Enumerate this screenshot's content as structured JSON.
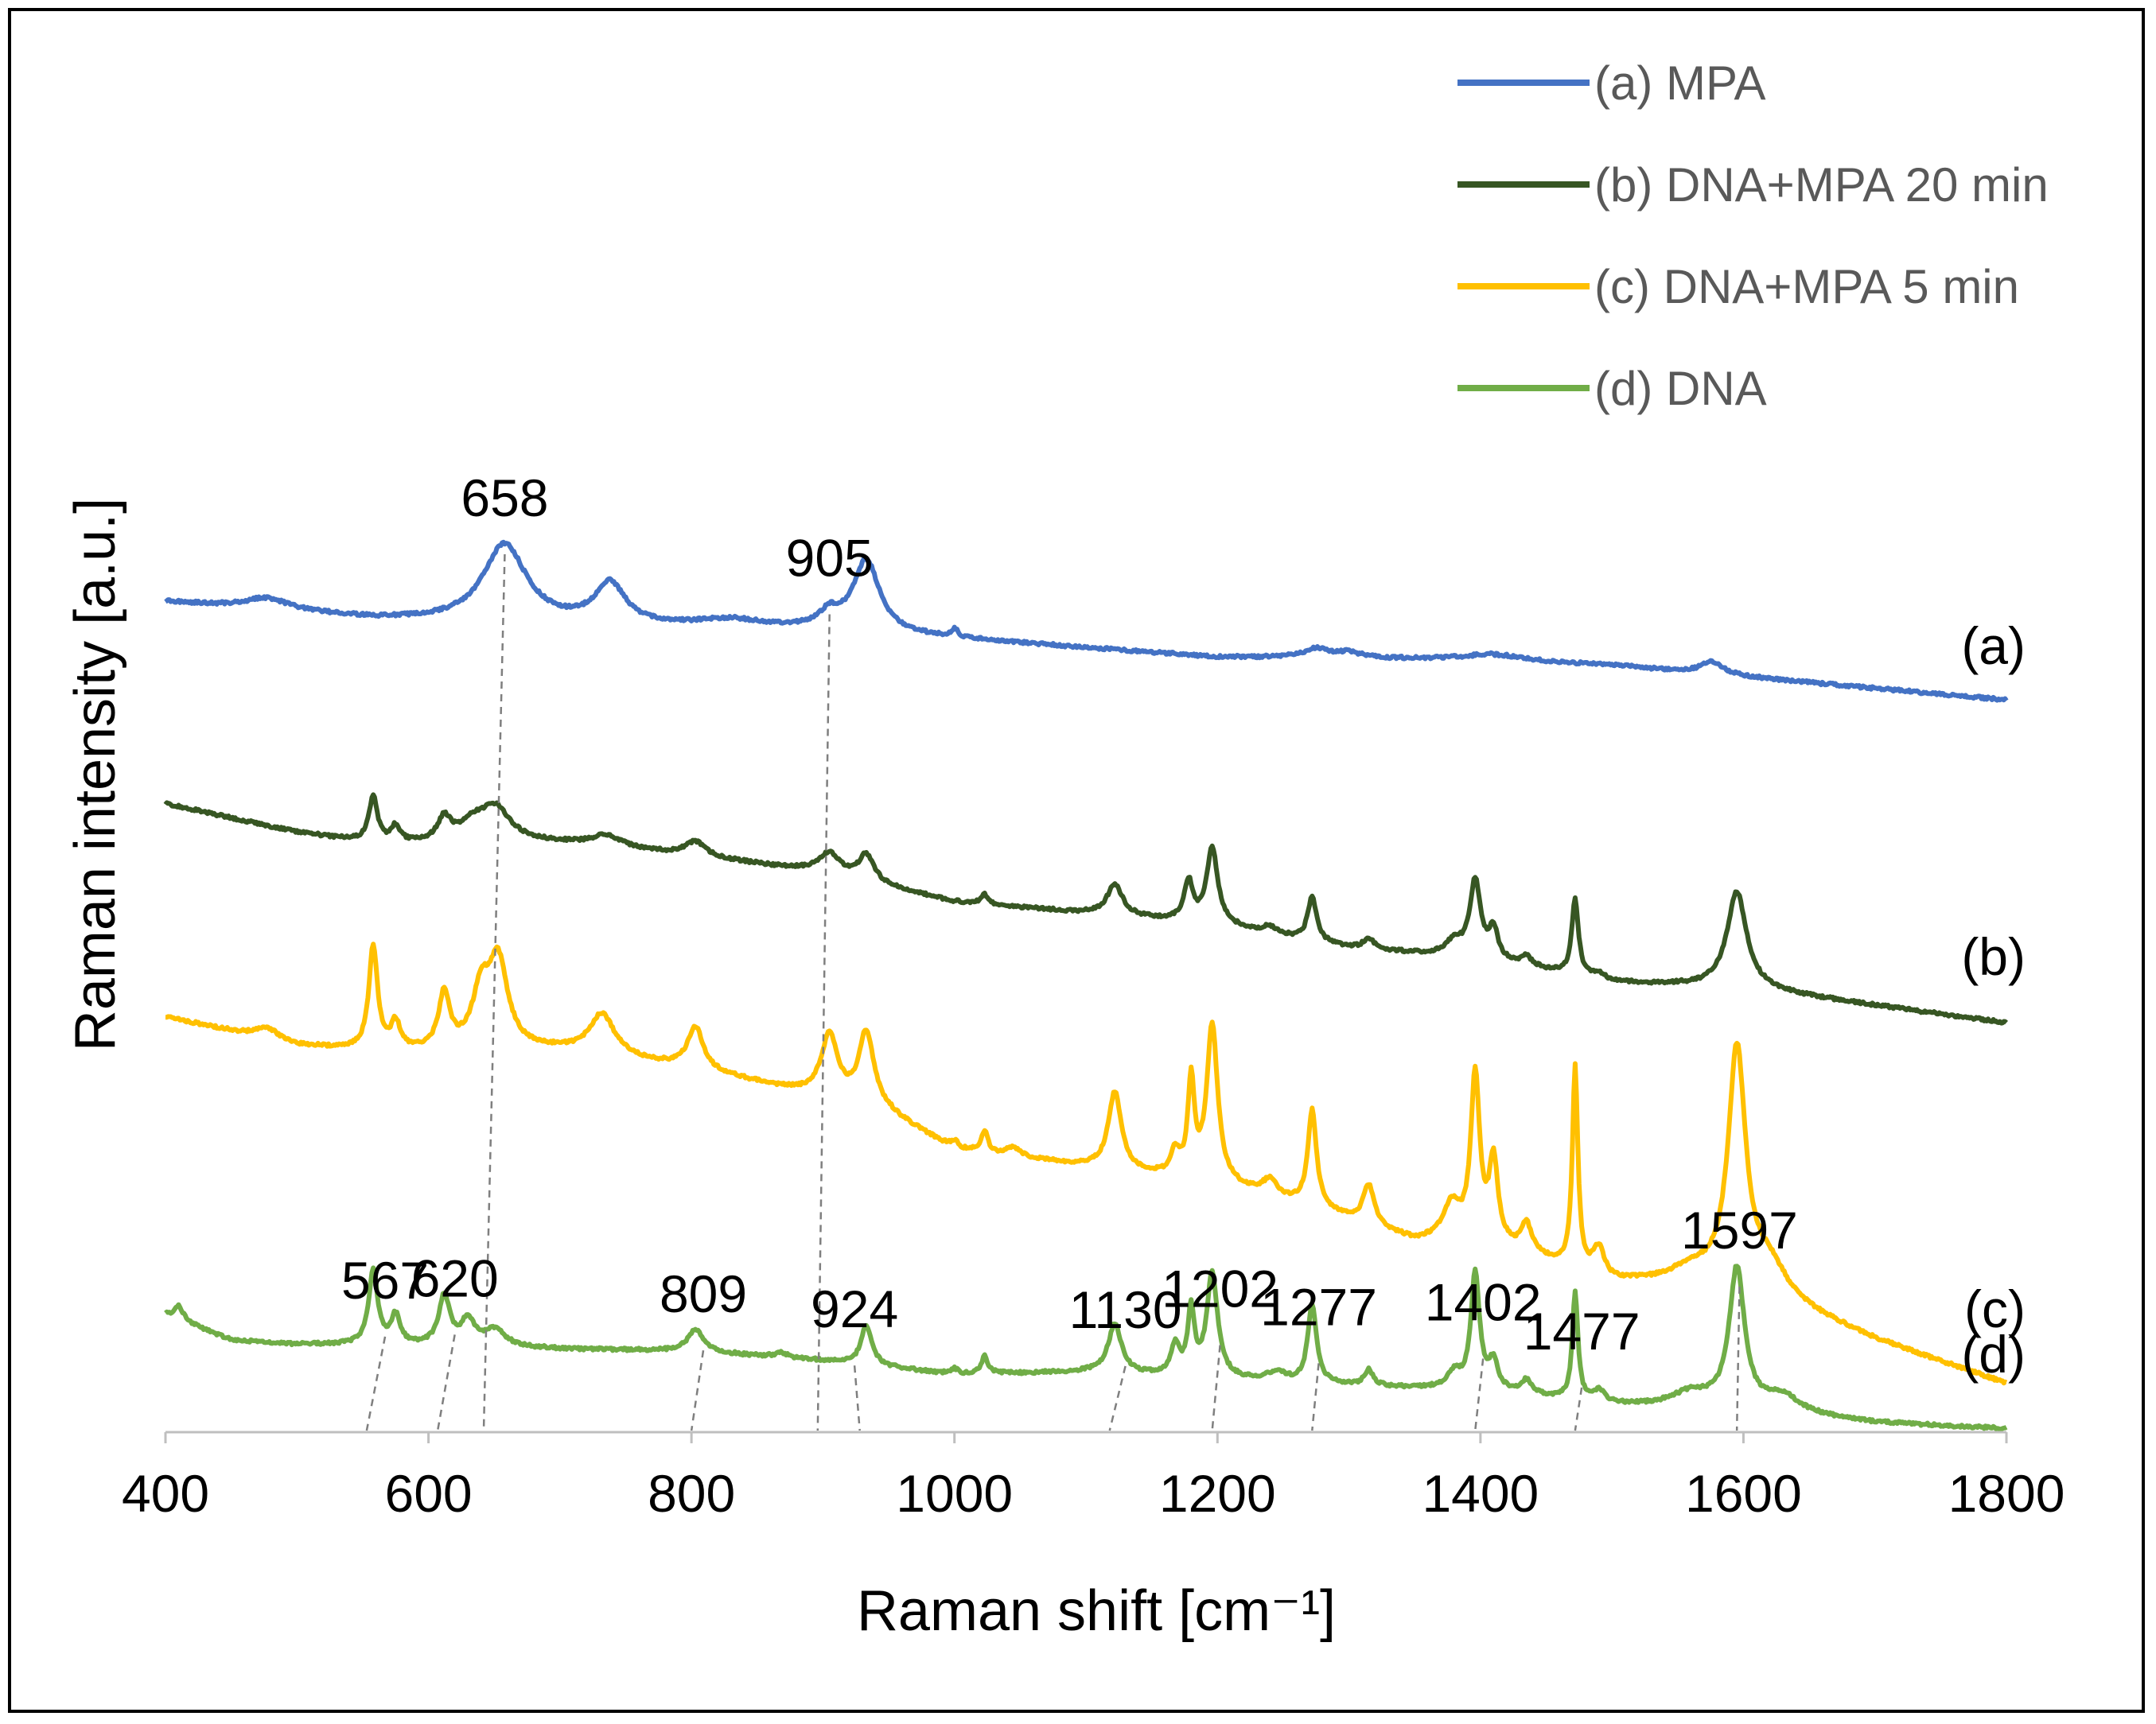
{
  "chart_data": {
    "type": "line",
    "title": "",
    "xlabel": "Raman shift [cm⁻¹]",
    "ylabel": "Raman intensity [a.u.]",
    "xlim": [
      400,
      1800
    ],
    "ylim": [
      0,
      100
    ],
    "x_ticks": [
      400,
      600,
      800,
      1000,
      1200,
      1400,
      1600,
      1800
    ],
    "x_tick_labels": [
      "400",
      "600",
      "800",
      "1000",
      "1200",
      "1400",
      "1600",
      "1800"
    ],
    "y_ticks_shown": false,
    "grid": false,
    "legend_position": "top-right",
    "peak_width": 9,
    "series": [
      {
        "name": "(a) MPA",
        "tag": "(a)",
        "color": "#4472C4",
        "baseline": [
          [
            400,
            72.0
          ],
          [
            560,
            70.5
          ],
          [
            700,
            70.0
          ],
          [
            900,
            69.5
          ],
          [
            1000,
            68.8
          ],
          [
            1200,
            67.2
          ],
          [
            1400,
            67.0
          ],
          [
            1500,
            66.5
          ],
          [
            1600,
            65.5
          ],
          [
            1800,
            63.5
          ]
        ],
        "peaks": [
          [
            477,
            1.0,
            20
          ],
          [
            658,
            6.8,
            20
          ],
          [
            738,
            3.5,
            14
          ],
          [
            830,
            0.7,
            30
          ],
          [
            905,
            1.3,
            10
          ],
          [
            933,
            6.2,
            12
          ],
          [
            1000,
            0.7,
            3
          ],
          [
            1275,
            0.8,
            12
          ],
          [
            1300,
            0.5,
            10
          ],
          [
            1410,
            0.5,
            25
          ],
          [
            1576,
            1.1,
            10
          ]
        ]
      },
      {
        "name": "(b) DNA+MPA 20 min",
        "tag": "(b)",
        "color": "#375623",
        "baseline": [
          [
            400,
            54.5
          ],
          [
            500,
            52.0
          ],
          [
            560,
            51.0
          ],
          [
            700,
            51.0
          ],
          [
            800,
            50.0
          ],
          [
            900,
            48.5
          ],
          [
            1000,
            46.0
          ],
          [
            1100,
            45.0
          ],
          [
            1200,
            44.0
          ],
          [
            1300,
            42.0
          ],
          [
            1400,
            41.0
          ],
          [
            1500,
            39.0
          ],
          [
            1600,
            38.5
          ],
          [
            1800,
            35.5
          ]
        ],
        "peaks": [
          [
            558,
            4.0,
            4
          ],
          [
            575,
            1.4,
            4
          ],
          [
            612,
            2.0,
            6
          ],
          [
            632,
            1.2,
            10
          ],
          [
            650,
            3.2,
            15
          ],
          [
            735,
            1.0,
            15
          ],
          [
            803,
            1.2,
            9
          ],
          [
            905,
            1.8,
            10
          ],
          [
            933,
            2.3,
            7
          ],
          [
            1023,
            0.8,
            3
          ],
          [
            1122,
            2.7,
            7
          ],
          [
            1178,
            3.4,
            4
          ],
          [
            1196,
            6.6,
            5
          ],
          [
            1240,
            0.6,
            6
          ],
          [
            1272,
            3.8,
            4
          ],
          [
            1315,
            0.9,
            5
          ],
          [
            1380,
            1.2,
            8
          ],
          [
            1396,
            6.6,
            5
          ],
          [
            1410,
            2.6,
            4
          ],
          [
            1435,
            0.8,
            5
          ],
          [
            1472,
            6.6,
            3
          ],
          [
            1490,
            0.5,
            6
          ],
          [
            1595,
            8.3,
            9
          ]
        ]
      },
      {
        "name": "(c) DNA+MPA 5 min",
        "tag": "(c)",
        "color": "#FFC000",
        "baseline": [
          [
            400,
            36.0
          ],
          [
            500,
            33.5
          ],
          [
            560,
            33.0
          ],
          [
            700,
            33.0
          ],
          [
            800,
            31.5
          ],
          [
            860,
            30.0
          ],
          [
            950,
            27.5
          ],
          [
            1000,
            24.5
          ],
          [
            1100,
            23.0
          ],
          [
            1200,
            21.5
          ],
          [
            1300,
            18.5
          ],
          [
            1350,
            16.5
          ],
          [
            1400,
            16.5
          ],
          [
            1500,
            13.0
          ],
          [
            1600,
            12.5
          ],
          [
            1700,
            8.0
          ],
          [
            1800,
            4.2
          ]
        ],
        "peaks": [
          [
            477,
            1.0,
            10
          ],
          [
            558,
            9.0,
            4
          ],
          [
            575,
            2.3,
            4
          ],
          [
            612,
            4.8,
            5
          ],
          [
            640,
            4.5,
            8
          ],
          [
            653,
            7.5,
            9
          ],
          [
            732,
            3.6,
            12
          ],
          [
            803,
            3.6,
            7
          ],
          [
            905,
            5.5,
            8
          ],
          [
            933,
            6.5,
            7
          ],
          [
            1000,
            0.7,
            3
          ],
          [
            1023,
            1.8,
            3
          ],
          [
            1045,
            0.8,
            6
          ],
          [
            1122,
            6.7,
            6
          ],
          [
            1168,
            2.0,
            4
          ],
          [
            1180,
            8.2,
            3
          ],
          [
            1196,
            13.5,
            5
          ],
          [
            1240,
            1.4,
            7
          ],
          [
            1272,
            8.4,
            4
          ],
          [
            1315,
            3.4,
            5
          ],
          [
            1378,
            3.0,
            8
          ],
          [
            1396,
            14.0,
            4
          ],
          [
            1410,
            7.0,
            4
          ],
          [
            1435,
            2.5,
            5
          ],
          [
            1472,
            17.4,
            2.5
          ],
          [
            1490,
            2.4,
            5
          ],
          [
            1560,
            1.2,
            20
          ],
          [
            1595,
            20.2,
            8
          ],
          [
            1620,
            2.5,
            16
          ]
        ]
      },
      {
        "name": "(d) DNA",
        "tag": "(d)",
        "color": "#70AD47",
        "baseline": [
          [
            400,
            10.2
          ],
          [
            450,
            8.0
          ],
          [
            500,
            7.6
          ],
          [
            560,
            7.6
          ],
          [
            700,
            7.2
          ],
          [
            800,
            7.0
          ],
          [
            900,
            6.2
          ],
          [
            1000,
            5.0
          ],
          [
            1100,
            5.2
          ],
          [
            1200,
            4.6
          ],
          [
            1300,
            4.0
          ],
          [
            1400,
            3.6
          ],
          [
            1500,
            2.3
          ],
          [
            1600,
            2.0
          ],
          [
            1700,
            0.8
          ],
          [
            1800,
            0.3
          ]
        ],
        "peaks": [
          [
            410,
            1.2,
            4
          ],
          [
            558,
            6.5,
            4
          ],
          [
            575,
            2.5,
            4
          ],
          [
            612,
            4.3,
            5
          ],
          [
            630,
            2.2,
            6
          ],
          [
            650,
            1.5,
            10
          ],
          [
            803,
            1.9,
            7
          ],
          [
            868,
            0.4,
            6
          ],
          [
            933,
            3.4,
            5
          ],
          [
            1000,
            0.5,
            3
          ],
          [
            1023,
            1.5,
            3
          ],
          [
            1122,
            4.3,
            6
          ],
          [
            1168,
            2.5,
            4
          ],
          [
            1180,
            5.6,
            3
          ],
          [
            1196,
            9.0,
            5
          ],
          [
            1245,
            0.8,
            8
          ],
          [
            1272,
            6.8,
            4
          ],
          [
            1315,
            1.4,
            4
          ],
          [
            1380,
            1.3,
            6
          ],
          [
            1396,
            10.0,
            4
          ],
          [
            1410,
            2.5,
            4
          ],
          [
            1435,
            1.2,
            5
          ],
          [
            1472,
            9.4,
            2.5
          ],
          [
            1490,
            1.0,
            6
          ],
          [
            1560,
            1.2,
            18
          ],
          [
            1595,
            12.0,
            7
          ],
          [
            1630,
            1.4,
            15
          ]
        ]
      }
    ],
    "peak_markers": [
      {
        "x": 658,
        "label": "658",
        "line_to": 642,
        "from_series": 0,
        "to_series": 3
      },
      {
        "x": 905,
        "label": "905",
        "line_to": 896,
        "from_series": 0,
        "to_series": 3
      },
      {
        "x": 567,
        "label": "567",
        "line_to": 553,
        "from_series": 3,
        "to_series": 3
      },
      {
        "x": 620,
        "label": "620",
        "line_to": 607,
        "from_series": 3,
        "to_series": 3
      },
      {
        "x": 809,
        "label": "809",
        "line_to": 800,
        "from_series": 3,
        "to_series": 3
      },
      {
        "x": 924,
        "label": "924",
        "line_to": 928,
        "from_series": 3,
        "to_series": 3
      },
      {
        "x": 1130,
        "label": "1130",
        "line_to": 1118,
        "from_series": 3,
        "to_series": 3
      },
      {
        "x": 1202,
        "label": "1202",
        "line_to": 1196,
        "from_series": 3,
        "to_series": 3
      },
      {
        "x": 1277,
        "label": "1277",
        "line_to": 1272,
        "from_series": 3,
        "to_series": 3
      },
      {
        "x": 1402,
        "label": "1402",
        "line_to": 1396,
        "from_series": 3,
        "to_series": 3
      },
      {
        "x": 1477,
        "label": "1477",
        "line_to": 1472,
        "from_series": 3,
        "to_series": 3
      },
      {
        "x": 1597,
        "label": "1597",
        "line_to": 1595,
        "from_series": 3,
        "to_series": 3
      }
    ]
  }
}
